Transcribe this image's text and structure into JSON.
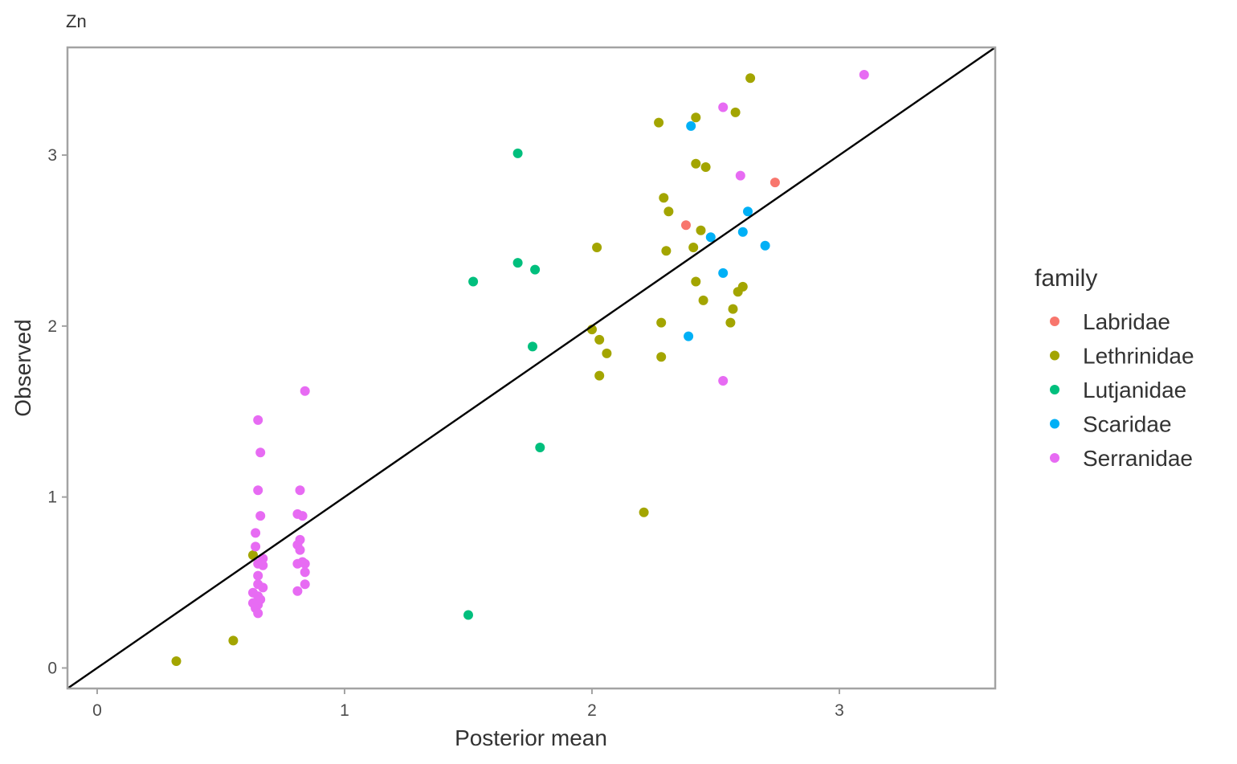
{
  "chart_data": {
    "type": "scatter",
    "title": "Zn",
    "xlabel": "Posterior mean",
    "ylabel": "Observed",
    "xlim": [
      -0.12,
      3.63
    ],
    "ylim": [
      -0.12,
      3.63
    ],
    "x_ticks": [
      0,
      1,
      2,
      3
    ],
    "y_ticks": [
      0,
      1,
      2,
      3
    ],
    "x_tick_labels": [
      "0",
      "1",
      "2",
      "3"
    ],
    "y_tick_labels": [
      "0",
      "1",
      "2",
      "3"
    ],
    "grid": false,
    "reference_line": {
      "type": "identity",
      "slope": 1,
      "intercept": 0,
      "color": "#000000"
    },
    "legend": {
      "title": "family",
      "position": "right",
      "entries": [
        "Labridae",
        "Lethrinidae",
        "Lutjanidae",
        "Scaridae",
        "Serranidae"
      ]
    },
    "series": [
      {
        "name": "Labridae",
        "color": "#F8766D",
        "points": [
          [
            2.38,
            2.59
          ],
          [
            2.74,
            2.84
          ]
        ]
      },
      {
        "name": "Lethrinidae",
        "color": "#A3A500",
        "points": [
          [
            2.64,
            3.45
          ],
          [
            2.27,
            3.19
          ],
          [
            2.42,
            3.22
          ],
          [
            2.58,
            3.25
          ],
          [
            2.42,
            2.95
          ],
          [
            2.46,
            2.93
          ],
          [
            2.29,
            2.75
          ],
          [
            2.31,
            2.67
          ],
          [
            2.44,
            2.56
          ],
          [
            2.02,
            2.46
          ],
          [
            2.3,
            2.44
          ],
          [
            2.41,
            2.46
          ],
          [
            2.42,
            2.26
          ],
          [
            2.61,
            2.23
          ],
          [
            2.59,
            2.2
          ],
          [
            2.45,
            2.15
          ],
          [
            2.57,
            2.1
          ],
          [
            2.28,
            2.02
          ],
          [
            2.56,
            2.02
          ],
          [
            2.0,
            1.98
          ],
          [
            2.03,
            1.92
          ],
          [
            2.06,
            1.84
          ],
          [
            2.28,
            1.82
          ],
          [
            2.03,
            1.71
          ],
          [
            2.21,
            0.91
          ],
          [
            0.63,
            0.66
          ],
          [
            0.55,
            0.16
          ],
          [
            0.32,
            0.04
          ]
        ]
      },
      {
        "name": "Lutjanidae",
        "color": "#00BF7D",
        "points": [
          [
            1.7,
            3.01
          ],
          [
            1.7,
            2.37
          ],
          [
            1.77,
            2.33
          ],
          [
            1.52,
            2.26
          ],
          [
            1.76,
            1.88
          ],
          [
            1.79,
            1.29
          ],
          [
            1.5,
            0.31
          ]
        ]
      },
      {
        "name": "Scaridae",
        "color": "#00B0F6",
        "points": [
          [
            2.4,
            3.17
          ],
          [
            2.63,
            2.67
          ],
          [
            2.61,
            2.55
          ],
          [
            2.48,
            2.52
          ],
          [
            2.7,
            2.47
          ],
          [
            2.53,
            2.31
          ],
          [
            2.39,
            1.94
          ]
        ]
      },
      {
        "name": "Serranidae",
        "color": "#E76BF3",
        "points": [
          [
            3.1,
            3.47
          ],
          [
            2.53,
            3.28
          ],
          [
            2.6,
            2.88
          ],
          [
            2.53,
            1.68
          ],
          [
            0.84,
            1.62
          ],
          [
            0.65,
            1.45
          ],
          [
            0.66,
            1.26
          ],
          [
            0.65,
            1.04
          ],
          [
            0.82,
            1.04
          ],
          [
            0.66,
            0.89
          ],
          [
            0.81,
            0.9
          ],
          [
            0.83,
            0.89
          ],
          [
            0.64,
            0.79
          ],
          [
            0.82,
            0.75
          ],
          [
            0.64,
            0.71
          ],
          [
            0.81,
            0.72
          ],
          [
            0.82,
            0.69
          ],
          [
            0.67,
            0.64
          ],
          [
            0.65,
            0.61
          ],
          [
            0.67,
            0.6
          ],
          [
            0.81,
            0.61
          ],
          [
            0.83,
            0.62
          ],
          [
            0.84,
            0.61
          ],
          [
            0.65,
            0.54
          ],
          [
            0.84,
            0.56
          ],
          [
            0.65,
            0.49
          ],
          [
            0.67,
            0.47
          ],
          [
            0.84,
            0.49
          ],
          [
            0.63,
            0.44
          ],
          [
            0.65,
            0.42
          ],
          [
            0.81,
            0.45
          ],
          [
            0.66,
            0.4
          ],
          [
            0.63,
            0.38
          ],
          [
            0.65,
            0.37
          ],
          [
            0.64,
            0.35
          ],
          [
            0.65,
            0.32
          ]
        ]
      }
    ]
  }
}
